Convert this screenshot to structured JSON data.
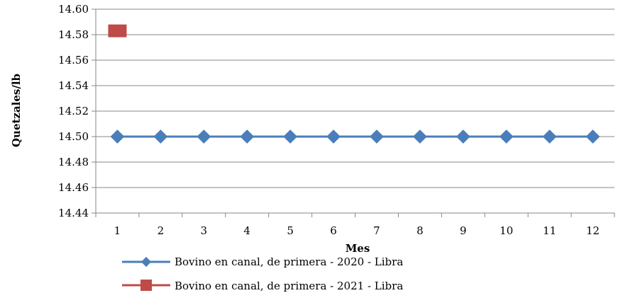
{
  "chart_data": {
    "type": "line",
    "title": "",
    "xlabel": "Mes",
    "ylabel": "Quetzales/lb",
    "x": [
      1,
      2,
      3,
      4,
      5,
      6,
      7,
      8,
      9,
      10,
      11,
      12
    ],
    "ylim": [
      14.44,
      14.6
    ],
    "yticks": [
      "14.44",
      "14.46",
      "14.48",
      "14.50",
      "14.52",
      "14.54",
      "14.56",
      "14.58",
      "14.60"
    ],
    "grid": true,
    "legend": "bottom",
    "series": [
      {
        "name": "Bovino en canal, de primera - 2020 - Libra",
        "color": "#4a7ebb",
        "marker": "diamond",
        "x": [
          1,
          2,
          3,
          4,
          5,
          6,
          7,
          8,
          9,
          10,
          11,
          12
        ],
        "values": [
          14.5,
          14.5,
          14.5,
          14.5,
          14.5,
          14.5,
          14.5,
          14.5,
          14.5,
          14.5,
          14.5,
          14.5
        ]
      },
      {
        "name": "Bovino en canal, de primera - 2021 - Libra",
        "color": "#be4b48",
        "marker": "square",
        "x": [
          1
        ],
        "values": [
          14.583
        ]
      }
    ]
  }
}
